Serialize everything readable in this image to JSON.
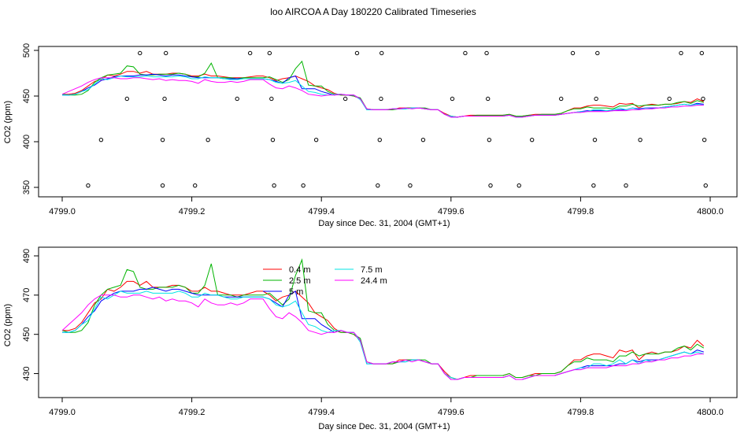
{
  "title": "loo AIRCOA A  Day 180220  Calibrated Timeseries",
  "colors": {
    "0.4 m": "#ff0000",
    "2.5 m": "#00b400",
    "5 m": "#0000ff",
    "7.5 m": "#00e5e5",
    "24.4 m": "#ff00ff",
    "black": "#000000"
  },
  "chart_data": [
    {
      "type": "line",
      "xlabel": "Day since Dec. 31, 2004 (GMT+1)",
      "ylabel": "CO2 (ppm)",
      "xlim": [
        4799.0,
        4800.0
      ],
      "ylim": [
        350,
        500
      ],
      "x_ticks": [
        "4799.0",
        "4799.2",
        "4799.4",
        "4799.6",
        "4799.8",
        "4800.0"
      ],
      "y_ticks": [
        "350",
        "400",
        "450",
        "500"
      ],
      "calibration_points": [
        {
          "x": 4799.04,
          "y": 352
        },
        {
          "x": 4799.06,
          "y": 402
        },
        {
          "x": 4799.1,
          "y": 447
        },
        {
          "x": 4799.12,
          "y": 497
        },
        {
          "x": 4799.155,
          "y": 352
        },
        {
          "x": 4799.155,
          "y": 402
        },
        {
          "x": 4799.158,
          "y": 447
        },
        {
          "x": 4799.16,
          "y": 497
        },
        {
          "x": 4799.205,
          "y": 352
        },
        {
          "x": 4799.225,
          "y": 402
        },
        {
          "x": 4799.27,
          "y": 447
        },
        {
          "x": 4799.29,
          "y": 497
        },
        {
          "x": 4799.32,
          "y": 497
        },
        {
          "x": 4799.323,
          "y": 447
        },
        {
          "x": 4799.325,
          "y": 402
        },
        {
          "x": 4799.327,
          "y": 352
        },
        {
          "x": 4799.372,
          "y": 352
        },
        {
          "x": 4799.392,
          "y": 402
        },
        {
          "x": 4799.437,
          "y": 447
        },
        {
          "x": 4799.455,
          "y": 497
        },
        {
          "x": 4799.487,
          "y": 352
        },
        {
          "x": 4799.49,
          "y": 402
        },
        {
          "x": 4799.492,
          "y": 447
        },
        {
          "x": 4799.493,
          "y": 497
        },
        {
          "x": 4799.537,
          "y": 352
        },
        {
          "x": 4799.557,
          "y": 402
        },
        {
          "x": 4799.602,
          "y": 447
        },
        {
          "x": 4799.622,
          "y": 497
        },
        {
          "x": 4799.655,
          "y": 497
        },
        {
          "x": 4799.657,
          "y": 447
        },
        {
          "x": 4799.659,
          "y": 402
        },
        {
          "x": 4799.661,
          "y": 352
        },
        {
          "x": 4799.705,
          "y": 352
        },
        {
          "x": 4799.725,
          "y": 402
        },
        {
          "x": 4799.77,
          "y": 447
        },
        {
          "x": 4799.788,
          "y": 497
        },
        {
          "x": 4799.82,
          "y": 352
        },
        {
          "x": 4799.822,
          "y": 402
        },
        {
          "x": 4799.824,
          "y": 447
        },
        {
          "x": 4799.826,
          "y": 497
        },
        {
          "x": 4799.87,
          "y": 352
        },
        {
          "x": 4799.892,
          "y": 402
        },
        {
          "x": 4799.937,
          "y": 447
        },
        {
          "x": 4799.955,
          "y": 497
        },
        {
          "x": 4799.987,
          "y": 497
        },
        {
          "x": 4799.989,
          "y": 447
        },
        {
          "x": 4799.991,
          "y": 402
        },
        {
          "x": 4799.993,
          "y": 352
        }
      ]
    },
    {
      "type": "line",
      "xlabel": "Day since Dec. 31, 2004 (GMT+1)",
      "ylabel": "CO2 (ppm)",
      "xlim": [
        4799.0,
        4800.0
      ],
      "ylim": [
        425,
        490
      ],
      "x_ticks": [
        "4799.0",
        "4799.2",
        "4799.4",
        "4799.6",
        "4799.8",
        "4800.0"
      ],
      "y_ticks": [
        "430",
        "450",
        "470",
        "490"
      ],
      "legend": [
        "0.4 m",
        "2.5 m",
        "5 m",
        "7.5 m",
        "24.4 m"
      ]
    }
  ],
  "series_x": [
    4799.0,
    4799.01,
    4799.02,
    4799.03,
    4799.04,
    4799.05,
    4799.06,
    4799.07,
    4799.08,
    4799.09,
    4799.1,
    4799.11,
    4799.12,
    4799.13,
    4799.14,
    4799.15,
    4799.16,
    4799.17,
    4799.18,
    4799.19,
    4799.2,
    4799.21,
    4799.22,
    4799.23,
    4799.24,
    4799.25,
    4799.26,
    4799.27,
    4799.28,
    4799.29,
    4799.3,
    4799.31,
    4799.32,
    4799.33,
    4799.34,
    4799.35,
    4799.36,
    4799.37,
    4799.38,
    4799.39,
    4799.4,
    4799.41,
    4799.42,
    4799.43,
    4799.44,
    4799.45,
    4799.46,
    4799.47,
    4799.48,
    4799.49,
    4799.5,
    4799.51,
    4799.52,
    4799.53,
    4799.54,
    4799.55,
    4799.56,
    4799.57,
    4799.58,
    4799.59,
    4799.6,
    4799.61,
    4799.62,
    4799.63,
    4799.64,
    4799.65,
    4799.66,
    4799.67,
    4799.68,
    4799.69,
    4799.7,
    4799.71,
    4799.72,
    4799.73,
    4799.74,
    4799.75,
    4799.76,
    4799.77,
    4799.78,
    4799.79,
    4799.8,
    4799.81,
    4799.82,
    4799.83,
    4799.84,
    4799.85,
    4799.86,
    4799.87,
    4799.88,
    4799.89,
    4799.9,
    4799.91,
    4799.92,
    4799.93,
    4799.94,
    4799.95,
    4799.96,
    4799.97,
    4799.98,
    4799.99
  ],
  "series": [
    {
      "name": "0.4 m",
      "values": [
        452,
        452,
        453,
        456,
        461,
        466,
        468,
        473,
        472,
        474,
        477,
        477,
        475,
        477,
        474,
        474,
        474,
        475,
        475,
        474,
        472,
        472,
        474,
        472,
        472,
        471,
        470,
        470,
        470,
        471,
        472,
        472,
        470,
        467,
        469,
        470,
        472,
        469,
        466,
        461,
        459,
        457,
        453,
        451,
        451,
        450,
        447,
        436,
        435,
        435,
        435,
        435,
        437,
        437,
        437,
        437,
        436,
        435,
        435,
        431,
        428,
        427,
        428,
        429,
        429,
        429,
        429,
        429,
        429,
        430,
        428,
        428,
        429,
        430,
        430,
        430,
        430,
        431,
        434,
        437,
        437,
        439,
        440,
        440,
        439,
        438,
        442,
        441,
        442,
        437,
        440,
        441,
        440,
        441,
        441,
        442,
        444,
        443,
        447,
        444
      ]
    },
    {
      "name": "2.5 m",
      "values": [
        452,
        451,
        451,
        452,
        456,
        465,
        470,
        473,
        474,
        475,
        483,
        482,
        474,
        473,
        473,
        474,
        474,
        474,
        475,
        474,
        471,
        471,
        475,
        486,
        470,
        470,
        470,
        469,
        470,
        470,
        470,
        470,
        471,
        468,
        465,
        468,
        480,
        488,
        462,
        461,
        461,
        455,
        452,
        451,
        451,
        450,
        448,
        436,
        435,
        435,
        435,
        435,
        436,
        437,
        437,
        437,
        437,
        435,
        435,
        430,
        428,
        427,
        428,
        428,
        429,
        429,
        429,
        429,
        429,
        430,
        428,
        428,
        429,
        429,
        430,
        430,
        430,
        431,
        434,
        436,
        436,
        438,
        437,
        437,
        437,
        436,
        439,
        439,
        441,
        439,
        440,
        440,
        440,
        441,
        441,
        443,
        444,
        442,
        445,
        443
      ]
    },
    {
      "name": "5 m",
      "values": [
        451,
        451,
        452,
        455,
        459,
        462,
        467,
        469,
        471,
        472,
        472,
        472,
        473,
        473,
        474,
        473,
        472,
        473,
        473,
        472,
        471,
        470,
        470,
        470,
        470,
        469,
        469,
        469,
        469,
        469,
        469,
        469,
        468,
        466,
        464,
        470,
        472,
        458,
        458,
        458,
        455,
        453,
        451,
        452,
        451,
        451,
        447,
        435,
        435,
        435,
        435,
        436,
        436,
        436,
        437,
        437,
        436,
        435,
        435,
        430,
        427,
        427,
        428,
        428,
        428,
        428,
        428,
        428,
        428,
        429,
        427,
        427,
        428,
        429,
        429,
        429,
        429,
        430,
        431,
        432,
        433,
        434,
        434,
        434,
        434,
        434,
        435,
        435,
        437,
        436,
        437,
        437,
        437,
        438,
        439,
        440,
        441,
        440,
        442,
        441
      ]
    },
    {
      "name": "7.5 m",
      "values": [
        451,
        451,
        452,
        455,
        457,
        463,
        469,
        468,
        470,
        472,
        471,
        471,
        471,
        472,
        471,
        471,
        471,
        471,
        472,
        471,
        469,
        469,
        471,
        470,
        470,
        469,
        468,
        468,
        469,
        469,
        469,
        469,
        468,
        465,
        464,
        465,
        467,
        461,
        455,
        454,
        452,
        451,
        452,
        452,
        451,
        451,
        446,
        435,
        435,
        435,
        435,
        436,
        436,
        436,
        437,
        437,
        436,
        435,
        435,
        430,
        428,
        427,
        428,
        428,
        428,
        428,
        428,
        428,
        428,
        429,
        427,
        427,
        428,
        429,
        429,
        429,
        429,
        430,
        431,
        432,
        433,
        433,
        435,
        435,
        434,
        435,
        437,
        435,
        437,
        435,
        437,
        436,
        437,
        438,
        439,
        440,
        441,
        440,
        441,
        440
      ]
    },
    {
      "name": "24.4 m",
      "values": [
        452,
        455,
        458,
        461,
        465,
        468,
        470,
        470,
        470,
        469,
        469,
        470,
        470,
        469,
        468,
        469,
        467,
        468,
        467,
        467,
        466,
        464,
        468,
        466,
        465,
        465,
        466,
        465,
        466,
        468,
        468,
        468,
        463,
        459,
        458,
        461,
        459,
        456,
        452,
        451,
        450,
        451,
        451,
        452,
        451,
        451,
        447,
        436,
        435,
        435,
        435,
        436,
        436,
        437,
        436,
        437,
        436,
        435,
        435,
        430,
        427,
        427,
        428,
        428,
        428,
        428,
        428,
        428,
        428,
        429,
        427,
        427,
        428,
        429,
        429,
        429,
        429,
        430,
        431,
        432,
        432,
        433,
        433,
        433,
        433,
        434,
        434,
        434,
        435,
        435,
        436,
        436,
        437,
        437,
        438,
        438,
        439,
        439,
        440,
        440
      ]
    }
  ]
}
